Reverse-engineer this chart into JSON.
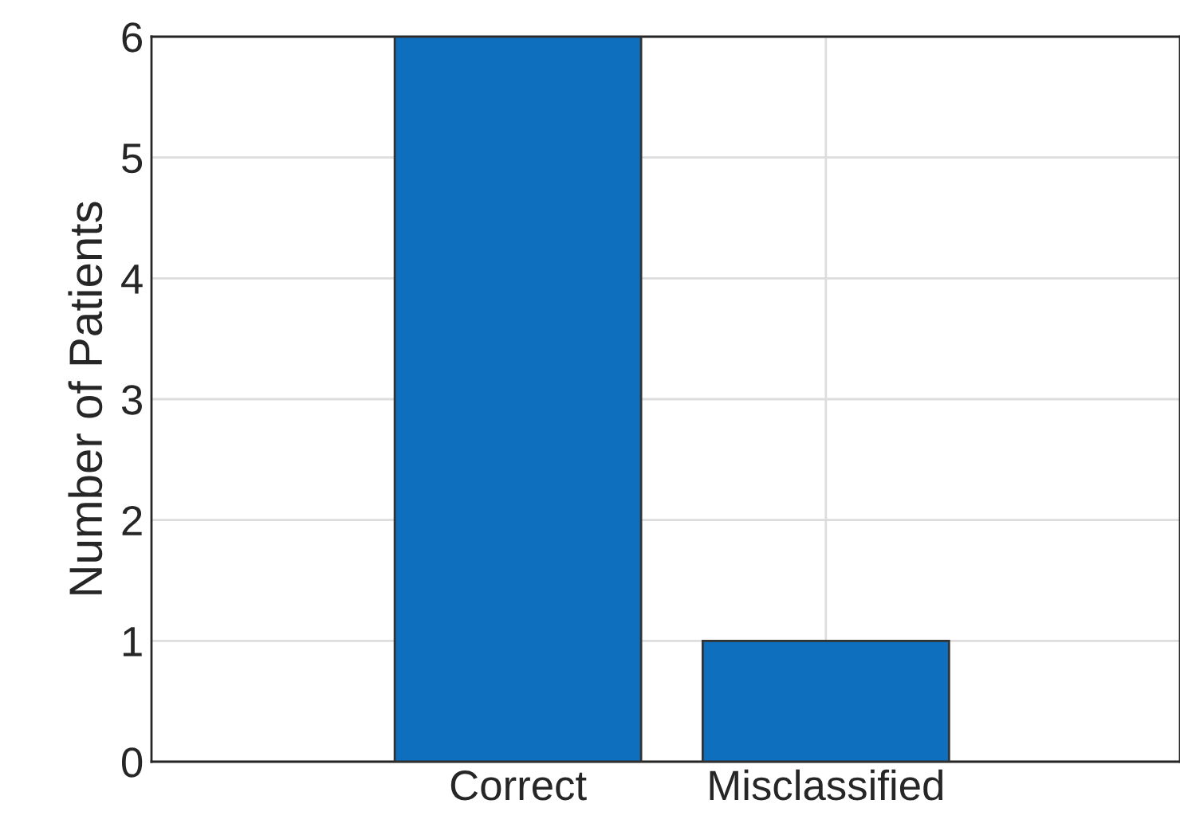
{
  "chart_data": {
    "type": "bar",
    "ylabel": "Number of Patients",
    "categories": [
      "Correct",
      "Misclassified"
    ],
    "values": [
      6,
      1
    ],
    "color": "#0f6fbf",
    "ylim": [
      0,
      6
    ],
    "yticks": [
      0,
      1,
      2,
      3,
      4,
      5,
      6
    ],
    "grid": true
  }
}
